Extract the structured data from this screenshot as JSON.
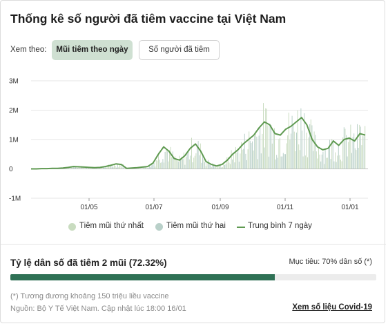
{
  "title": "Thống kê số người đã tiêm vaccine tại Việt Nam",
  "filter": {
    "label": "Xem theo:",
    "options": [
      "Mũi tiêm theo ngày",
      "Số người đã tiêm"
    ],
    "selected": "Mũi tiêm theo ngày"
  },
  "legend": {
    "first_dose": "Tiêm mũi thứ nhất",
    "second_dose": "Tiêm mũi thứ hai",
    "avg7": "Trung bình 7 ngày"
  },
  "colors": {
    "first_dose": "#c9dcc0",
    "second_dose": "#b9d0c9",
    "avg7": "#5f9a51",
    "progress": "#2f7155",
    "filter_active_bg": "#cfe0d2"
  },
  "chart_data": {
    "type": "bar",
    "y_ticks": [
      "3M",
      "2M",
      "1M",
      "0",
      "-1M"
    ],
    "y_tick_values": [
      3000000,
      2000000,
      1000000,
      0,
      -1000000
    ],
    "ylim": [
      -1000000,
      3000000
    ],
    "x_ticks": [
      "01/05",
      "01/07",
      "01/09",
      "01/11",
      "01/01"
    ],
    "grid": true,
    "series": [
      {
        "name": "Tiêm mũi thứ nhất",
        "type": "bar",
        "color": "#c9dcc0"
      },
      {
        "name": "Tiêm mũi thứ hai",
        "type": "bar",
        "color": "#b9d0c9"
      },
      {
        "name": "Trung bình 7 ngày",
        "type": "line",
        "color": "#5f9a51",
        "values": [
          0,
          0,
          10000,
          10000,
          20000,
          20000,
          30000,
          50000,
          80000,
          70000,
          60000,
          50000,
          40000,
          50000,
          80000,
          120000,
          170000,
          150000,
          20000,
          30000,
          40000,
          60000,
          80000,
          200000,
          500000,
          750000,
          600000,
          350000,
          300000,
          450000,
          700000,
          850000,
          600000,
          250000,
          150000,
          100000,
          150000,
          300000,
          500000,
          650000,
          850000,
          1000000,
          1150000,
          1400000,
          1600000,
          1500000,
          1200000,
          1150000,
          1350000,
          1450000,
          1600000,
          1750000,
          1500000,
          1000000,
          750000,
          650000,
          700000,
          950000,
          800000,
          1000000,
          1050000,
          950000,
          1200000,
          1150000
        ]
      }
    ]
  },
  "vaccination_rate": {
    "title": "Tỷ lệ dân số đã tiêm 2 mũi (72.32%)",
    "target_label": "Mục tiêu: 70% dân số (*)",
    "percent": 72.32
  },
  "footnote": "(*) Tương đương khoảng 150 triệu liều vaccine",
  "source": "Nguồn: Bộ Y Tế Việt Nam. Cập nhật lúc 18:00 16/01",
  "link_label": "Xem số liệu Covid-19"
}
